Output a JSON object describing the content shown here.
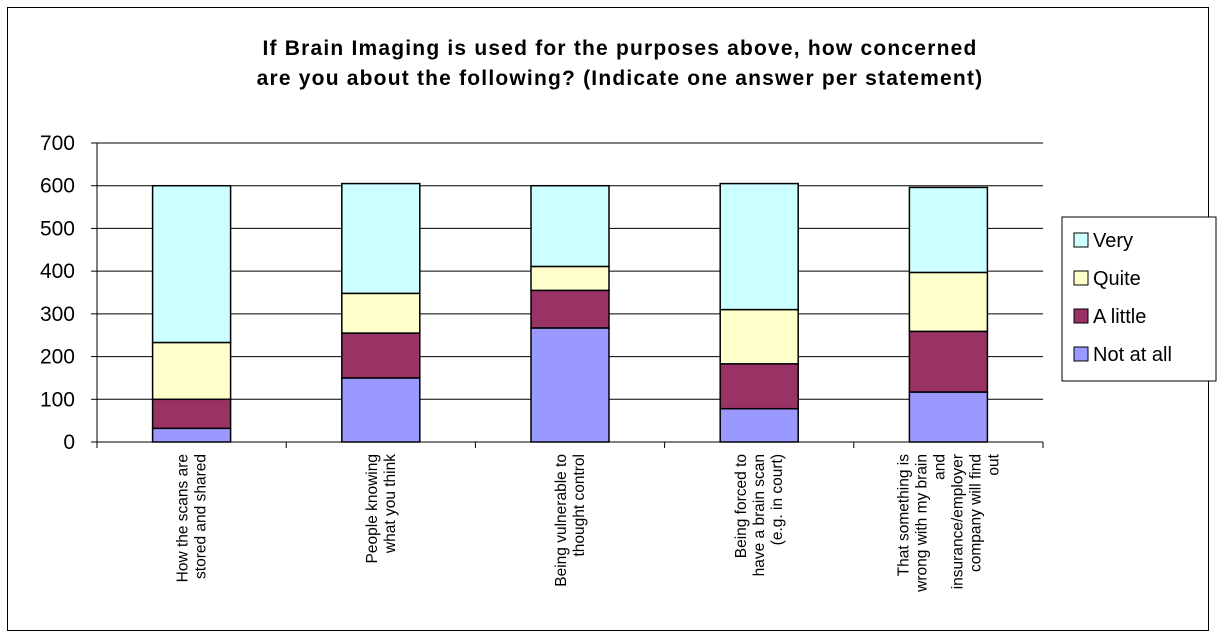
{
  "chart_data": {
    "type": "bar",
    "stacked": true,
    "title": "If Brain Imaging is used for the purposes above, how concerned are you about the following? (Indicate one answer per statement)",
    "title_lines": [
      "If Brain Imaging is used for the purposes above, how concerned",
      "are you about the following? (Indicate one answer per statement)"
    ],
    "categories": [
      "How the scans are stored and shared",
      "People knowing what you think",
      "Being vulnerable to thought control",
      "Being forced to have a brain scan (e.g. in court)",
      "That something is wrong with my brain and insurance/employer company will find out"
    ],
    "category_lines": [
      [
        "How the scans are",
        "stored and shared"
      ],
      [
        "People knowing",
        "what you think"
      ],
      [
        "Being vulnerable to",
        "thought control"
      ],
      [
        "Being forced to",
        "have a brain scan",
        "(e.g. in court)"
      ],
      [
        "That something is",
        "wrong with my brain",
        "and",
        "insurance/employer",
        "company will find",
        "out"
      ]
    ],
    "series": [
      {
        "name": "Not at all",
        "color": "#9999ff",
        "values": [
          32,
          150,
          267,
          78,
          117
        ]
      },
      {
        "name": "A little",
        "color": "#993366",
        "values": [
          68,
          105,
          88,
          105,
          142
        ]
      },
      {
        "name": "Quite",
        "color": "#ffffcc",
        "values": [
          133,
          93,
          56,
          127,
          138
        ]
      },
      {
        "name": "Very",
        "color": "#ccffff",
        "values": [
          367,
          257,
          189,
          295,
          199
        ]
      }
    ],
    "legend_order": [
      "Very",
      "Quite",
      "A little",
      "Not at all"
    ],
    "legend_position": "right",
    "ylim": [
      0,
      700
    ],
    "yticks": [
      0,
      100,
      200,
      300,
      400,
      500,
      600,
      700
    ],
    "xlabel": "",
    "ylabel": "",
    "grid": true
  }
}
